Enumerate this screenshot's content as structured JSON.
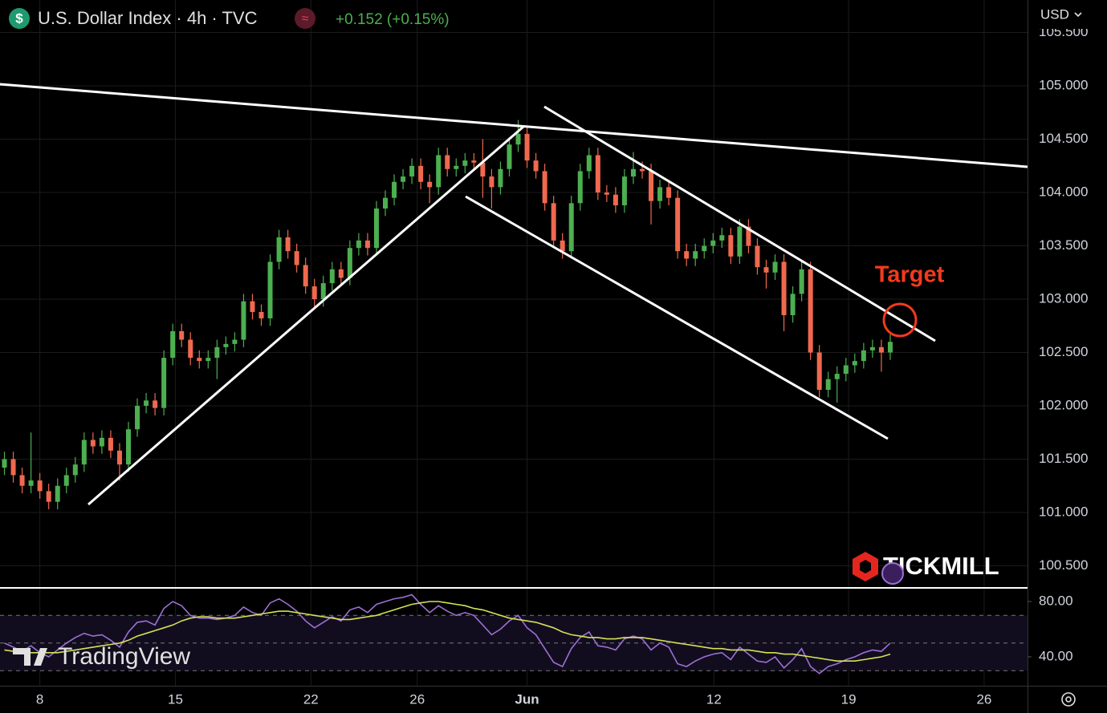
{
  "header": {
    "symbol_icon": "$",
    "title": "U.S. Dollar Index · 4h · TVC",
    "source_icon": "≈",
    "change": "+0.152 (+0.15%)",
    "currency": "USD"
  },
  "annotation": "Target",
  "logos": {
    "broker": "TICKMILL",
    "platform": "TradingView"
  },
  "chart_data": {
    "type": "candlestick",
    "color_up": "#4caf50",
    "color_down": "#f0694f",
    "grid": true,
    "open": [
      101.42,
      101.5,
      101.35,
      101.25,
      101.3,
      101.2,
      101.1,
      101.25,
      101.35,
      101.45,
      101.68,
      101.62,
      101.7,
      101.58,
      101.45,
      101.78,
      102.0,
      102.05,
      101.98,
      102.45,
      102.7,
      102.62,
      102.45,
      102.42,
      102.45,
      102.55,
      102.58,
      102.62,
      102.98,
      102.88,
      102.82,
      103.35,
      103.58,
      103.45,
      103.32,
      103.12,
      103.0,
      103.15,
      103.28,
      103.2,
      103.48,
      103.55,
      103.48,
      103.85,
      103.95,
      104.1,
      104.15,
      104.25,
      104.1,
      104.05,
      104.35,
      104.22,
      104.25,
      104.3,
      104.28,
      104.15,
      104.05,
      104.22,
      104.45,
      104.55,
      104.3,
      104.2,
      103.9,
      103.55,
      103.45,
      103.9,
      104.2,
      104.35,
      104.0,
      103.98,
      103.88,
      104.15,
      104.22,
      104.2,
      103.92,
      104.05,
      103.95,
      103.45,
      103.38,
      103.45,
      103.5,
      103.55,
      103.6,
      103.4,
      103.68,
      103.5,
      103.3,
      103.25,
      103.35,
      102.85,
      103.05,
      103.28,
      102.5,
      102.15,
      102.25,
      102.3,
      102.38,
      102.42,
      102.52,
      102.55,
      102.5
    ],
    "high": [
      101.57,
      101.57,
      101.42,
      101.75,
      101.37,
      101.27,
      101.32,
      101.42,
      101.52,
      101.75,
      101.75,
      101.77,
      101.77,
      101.65,
      101.85,
      102.07,
      102.12,
      102.12,
      102.52,
      102.77,
      102.77,
      102.69,
      102.52,
      102.52,
      102.62,
      102.65,
      102.69,
      103.05,
      103.05,
      102.95,
      103.42,
      103.65,
      103.65,
      103.52,
      103.39,
      103.19,
      103.22,
      103.35,
      103.35,
      103.55,
      103.62,
      103.62,
      103.92,
      104.02,
      104.17,
      104.22,
      104.32,
      104.32,
      104.17,
      104.42,
      104.42,
      104.32,
      104.37,
      104.37,
      104.5,
      104.22,
      104.29,
      104.52,
      104.68,
      104.62,
      104.37,
      104.27,
      103.97,
      103.62,
      103.97,
      104.27,
      104.42,
      104.42,
      104.07,
      104.05,
      104.22,
      104.38,
      104.29,
      104.27,
      104.12,
      104.12,
      104.02,
      103.52,
      103.52,
      103.57,
      103.62,
      103.67,
      103.67,
      103.75,
      103.75,
      103.57,
      103.37,
      103.42,
      103.42,
      103.12,
      103.35,
      103.35,
      102.57,
      102.32,
      102.37,
      102.45,
      102.49,
      102.59,
      102.62,
      102.62,
      102.67
    ],
    "low": [
      101.35,
      101.28,
      101.18,
      101.18,
      101.13,
      101.03,
      101.03,
      101.18,
      101.28,
      101.38,
      101.55,
      101.55,
      101.51,
      101.3,
      101.38,
      101.71,
      101.93,
      101.91,
      101.91,
      102.38,
      102.55,
      102.38,
      102.35,
      102.35,
      102.25,
      102.48,
      102.51,
      102.55,
      102.81,
      102.75,
      102.75,
      103.28,
      103.38,
      103.25,
      103.05,
      102.93,
      102.93,
      103.08,
      103.13,
      103.13,
      103.41,
      103.41,
      103.41,
      103.78,
      103.88,
      104.03,
      104.08,
      104.03,
      103.9,
      103.98,
      104.15,
      104.15,
      104.18,
      104.21,
      103.95,
      103.85,
      103.98,
      104.15,
      104.38,
      104.23,
      104.13,
      103.83,
      103.48,
      103.38,
      103.38,
      103.83,
      104.13,
      103.93,
      103.91,
      103.81,
      103.81,
      104.08,
      104.13,
      103.7,
      103.85,
      103.88,
      103.38,
      103.31,
      103.31,
      103.38,
      103.43,
      103.48,
      103.33,
      103.33,
      103.43,
      103.23,
      103.1,
      103.18,
      102.7,
      102.78,
      102.98,
      102.43,
      102.08,
      102.08,
      102.03,
      102.23,
      102.31,
      102.35,
      102.45,
      102.32,
      102.43
    ],
    "close": [
      101.5,
      101.35,
      101.25,
      101.3,
      101.2,
      101.1,
      101.25,
      101.35,
      101.45,
      101.68,
      101.62,
      101.7,
      101.58,
      101.45,
      101.78,
      102.0,
      102.05,
      101.98,
      102.45,
      102.7,
      102.62,
      102.45,
      102.42,
      102.45,
      102.55,
      102.58,
      102.62,
      102.98,
      102.88,
      102.82,
      103.35,
      103.58,
      103.45,
      103.32,
      103.12,
      103.0,
      103.15,
      103.28,
      103.2,
      103.48,
      103.55,
      103.48,
      103.85,
      103.95,
      104.1,
      104.15,
      104.25,
      104.1,
      104.05,
      104.35,
      104.22,
      104.25,
      104.3,
      104.28,
      104.15,
      104.05,
      104.22,
      104.45,
      104.55,
      104.3,
      104.2,
      103.9,
      103.55,
      103.45,
      103.9,
      104.2,
      104.35,
      104.0,
      103.98,
      103.88,
      104.15,
      104.22,
      104.2,
      103.92,
      104.05,
      103.95,
      103.45,
      103.38,
      103.45,
      103.5,
      103.55,
      103.6,
      103.4,
      103.68,
      103.5,
      103.3,
      103.25,
      103.35,
      102.85,
      103.05,
      103.28,
      102.5,
      102.15,
      102.25,
      102.3,
      102.38,
      102.42,
      102.52,
      102.55,
      102.5,
      102.6
    ],
    "xlim": [
      -0.5,
      115.5
    ],
    "xticks": [
      {
        "value": 4,
        "label": "8"
      },
      {
        "value": 19.3,
        "label": "15"
      },
      {
        "value": 34.6,
        "label": "22"
      },
      {
        "value": 46.6,
        "label": "26"
      },
      {
        "value": 59,
        "label": "Jun"
      },
      {
        "value": 80.1,
        "label": "12"
      },
      {
        "value": 95.3,
        "label": "19"
      },
      {
        "value": 110.6,
        "label": "26"
      }
    ],
    "ylim": [
      100.293,
      105.805
    ],
    "yticks": [
      {
        "value": 100.5,
        "label": "100.500"
      },
      {
        "value": 101,
        "label": "101.000"
      },
      {
        "value": 101.5,
        "label": "101.500"
      },
      {
        "value": 102,
        "label": "102.000"
      },
      {
        "value": 102.5,
        "label": "102.500"
      },
      {
        "value": 103,
        "label": "103.000"
      },
      {
        "value": 103.5,
        "label": "103.500"
      },
      {
        "value": 104,
        "label": "104.000"
      },
      {
        "value": 104.5,
        "label": "104.500"
      },
      {
        "value": 105,
        "label": "105.000"
      },
      {
        "value": 105.5,
        "label": "105.500"
      }
    ],
    "indicator": {
      "type": "line",
      "ylim": [
        19.13,
        89.86
      ],
      "yticks": [
        {
          "value": 40,
          "label": "40.00"
        },
        {
          "value": 80,
          "label": "80.00"
        }
      ],
      "levels": [
        30,
        50,
        70
      ],
      "series": [
        {
          "color": "#9c6fd6",
          "values": [
            50,
            47,
            44,
            48,
            43,
            40,
            45,
            50,
            54,
            57,
            55,
            56,
            52,
            47,
            58,
            65,
            66,
            63,
            75,
            80,
            77,
            70,
            68,
            68,
            67,
            68,
            70,
            76,
            72,
            70,
            79,
            82,
            78,
            73,
            66,
            61,
            65,
            69,
            66,
            74,
            76,
            72,
            78,
            80,
            82,
            83,
            85,
            78,
            72,
            77,
            73,
            70,
            72,
            70,
            63,
            56,
            60,
            66,
            70,
            61,
            56,
            46,
            36,
            33,
            46,
            54,
            58,
            48,
            47,
            45,
            53,
            55,
            53,
            45,
            50,
            47,
            35,
            33,
            37,
            40,
            42,
            43,
            38,
            47,
            42,
            37,
            36,
            40,
            32,
            38,
            46,
            33,
            28,
            33,
            35,
            38,
            40,
            43,
            45,
            44,
            50
          ]
        },
        {
          "color": "#d4e157",
          "values": [
            45,
            44,
            44,
            43,
            43,
            43,
            43,
            44,
            45,
            46,
            47,
            48,
            49,
            50,
            52,
            55,
            57,
            59,
            61,
            63,
            66,
            68,
            69,
            69,
            68,
            68,
            68,
            69,
            70,
            71,
            72,
            73,
            73,
            72,
            71,
            70,
            69,
            68,
            67,
            67,
            68,
            69,
            70,
            72,
            74,
            76,
            78,
            79,
            80,
            80,
            79,
            78,
            77,
            75,
            74,
            72,
            70,
            68,
            67,
            66,
            65,
            63,
            61,
            58,
            56,
            55,
            54,
            54,
            53,
            53,
            54,
            54,
            54,
            53,
            52,
            51,
            50,
            49,
            48,
            47,
            46,
            46,
            45,
            45,
            45,
            44,
            43,
            43,
            42,
            42,
            41,
            40,
            39,
            38,
            37,
            37,
            37,
            38,
            39,
            40,
            42
          ]
        }
      ]
    }
  }
}
